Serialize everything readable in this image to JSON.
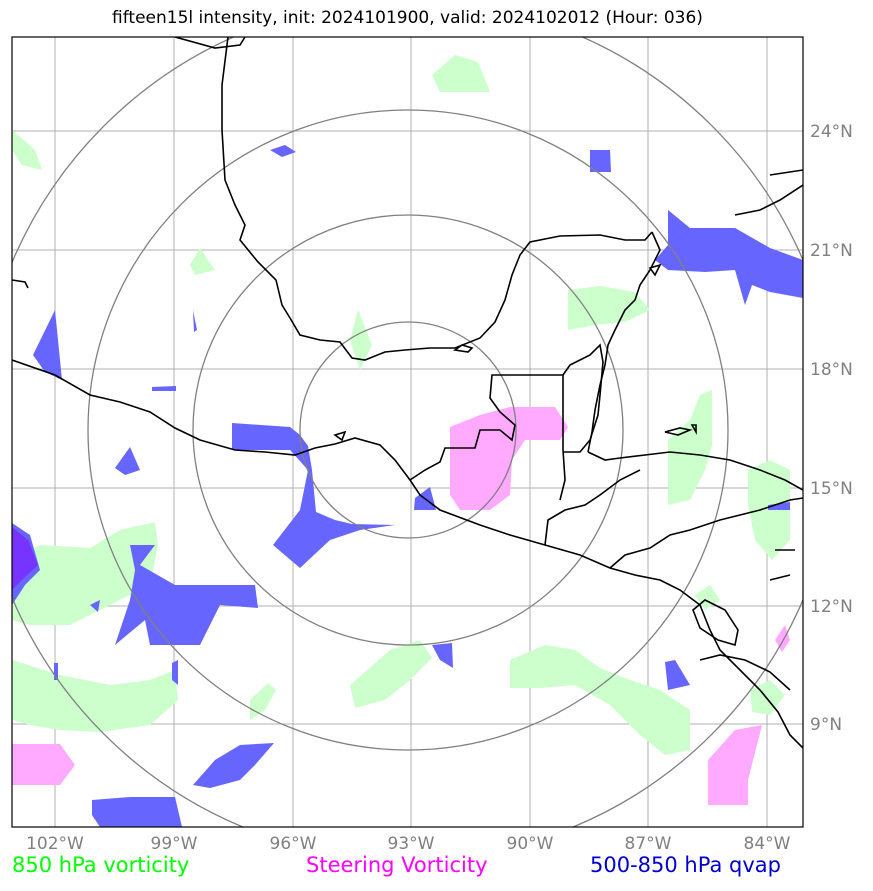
{
  "title": "fifteen15l intensity, init: 2024101900, valid: 2024102012 (Hour: 036)",
  "longitude_ticks": [
    "102°W",
    "99°W",
    "96°W",
    "93°W",
    "90°W",
    "87°W",
    "84°W"
  ],
  "latitude_ticks": [
    "24°N",
    "21°N",
    "18°N",
    "15°N",
    "12°N",
    "9°N"
  ],
  "legend": {
    "vorticity_850": {
      "label": "850 hPa vorticity",
      "color": "#00ff00"
    },
    "steering_vorticity": {
      "label": "Steering Vorticity",
      "color": "#ff00ff"
    },
    "qvap_500_850": {
      "label": "500-850 hPa qvap",
      "color": "#0000cc"
    }
  },
  "colors": {
    "green_fill": "#ccffcc",
    "magenta_fill": "#ffaaff",
    "blue_fill": "#6666ff",
    "range_rings": "#808080",
    "grid": "#b0b0b0",
    "coastline": "#000000"
  }
}
